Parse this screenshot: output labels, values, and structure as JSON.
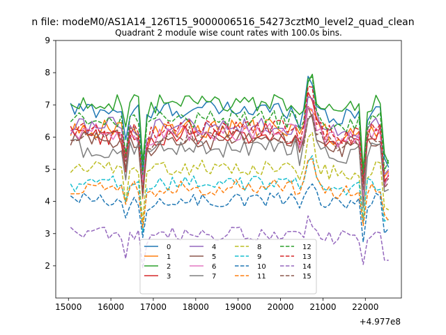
{
  "chart_data": {
    "type": "line",
    "suptitle": "n file: modeM0/AS1A14_126T15_9000006516_54273cztM0_level2_quad_clean",
    "title": "Quadrant 2 module wise count rates with 100.0s bins.",
    "xlabel": "",
    "ylabel": "",
    "x_offset_label": "+4.977e8",
    "xlim": [
      14700,
      22850
    ],
    "ylim": [
      1.0,
      9.0
    ],
    "x_ticks": [
      15000,
      16000,
      17000,
      18000,
      19000,
      20000,
      21000,
      22000
    ],
    "y_ticks": [
      2,
      3,
      4,
      5,
      6,
      7,
      8,
      9
    ],
    "x": [
      15050,
      15150,
      15250,
      15350,
      15450,
      15550,
      15650,
      15750,
      15850,
      15950,
      16050,
      16150,
      16250,
      16350,
      16450,
      16550,
      16650,
      16750,
      16850,
      16950,
      17050,
      17150,
      17250,
      17350,
      17450,
      17550,
      17650,
      17750,
      17850,
      17950,
      18050,
      18150,
      18250,
      18350,
      18450,
      18550,
      18650,
      18750,
      18850,
      18950,
      19050,
      19150,
      19250,
      19350,
      19450,
      19550,
      19650,
      19750,
      19850,
      19950,
      20050,
      20150,
      20250,
      20350,
      20450,
      20550,
      20650,
      20750,
      20850,
      20950,
      21050,
      21150,
      21250,
      21350,
      21450,
      21550,
      21650,
      21750,
      21850,
      21950,
      22050,
      22150,
      22250,
      22350,
      22450,
      22550
    ],
    "series": [
      {
        "name": "0",
        "color": "#1f77b4",
        "dash": "solid",
        "base": 6.85,
        "drop": 0.72,
        "amp": 0.28,
        "peak": 1.1
      },
      {
        "name": "1",
        "color": "#ff7f0e",
        "dash": "solid",
        "base": 6.25,
        "drop": 0.7,
        "amp": 0.3,
        "peak": 1.0
      },
      {
        "name": "2",
        "color": "#2ca02c",
        "dash": "solid",
        "base": 7.05,
        "drop": 0.74,
        "amp": 0.28,
        "peak": 1.0
      },
      {
        "name": "3",
        "color": "#d62728",
        "dash": "solid",
        "base": 6.05,
        "drop": 0.7,
        "amp": 0.3,
        "peak": 1.3
      },
      {
        "name": "4",
        "color": "#9467bd",
        "dash": "solid",
        "base": 6.35,
        "drop": 0.72,
        "amp": 0.28,
        "peak": 0.9
      },
      {
        "name": "5",
        "color": "#8c564b",
        "dash": "solid",
        "base": 5.85,
        "drop": 0.7,
        "amp": 0.3,
        "peak": 1.0
      },
      {
        "name": "6",
        "color": "#e377c2",
        "dash": "solid",
        "base": 6.15,
        "drop": 0.7,
        "amp": 0.28,
        "peak": 1.0
      },
      {
        "name": "7",
        "color": "#7f7f7f",
        "dash": "solid",
        "base": 5.65,
        "drop": 0.7,
        "amp": 0.3,
        "peak": 1.1
      },
      {
        "name": "8",
        "color": "#bcbd22",
        "dash": "dashed",
        "base": 5.05,
        "drop": 0.7,
        "amp": 0.25,
        "peak": 1.1
      },
      {
        "name": "9",
        "color": "#17becf",
        "dash": "dashed",
        "base": 4.55,
        "drop": 0.72,
        "amp": 0.25,
        "peak": 0.9
      },
      {
        "name": "10",
        "color": "#1f77b4",
        "dash": "dashed",
        "base": 4.05,
        "drop": 0.68,
        "amp": 0.22,
        "peak": 0.6
      },
      {
        "name": "11",
        "color": "#ff7f0e",
        "dash": "dashed",
        "base": 4.45,
        "drop": 0.72,
        "amp": 0.25,
        "peak": 1.3
      },
      {
        "name": "12",
        "color": "#2ca02c",
        "dash": "dashed",
        "base": 6.55,
        "drop": 0.72,
        "amp": 0.28,
        "peak": 1.8
      },
      {
        "name": "13",
        "color": "#d62728",
        "dash": "dashed",
        "base": 6.25,
        "drop": 0.72,
        "amp": 0.28,
        "peak": 1.4
      },
      {
        "name": "14",
        "color": "#9467bd",
        "dash": "dashed",
        "base": 3.0,
        "drop": 0.62,
        "amp": 0.22,
        "peak": 0.5
      },
      {
        "name": "15",
        "color": "#8c564b",
        "dash": "dashed",
        "base": 6.05,
        "drop": 0.72,
        "amp": 0.28,
        "peak": 1.0
      }
    ],
    "legend_position": "lower-center",
    "legend_columns": 4,
    "grid": false
  }
}
